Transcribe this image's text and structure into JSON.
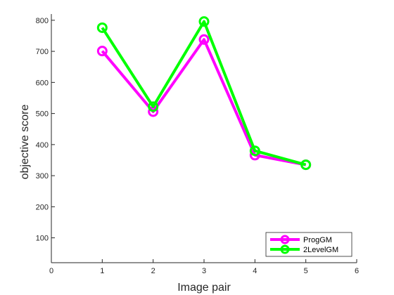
{
  "chart_data": {
    "type": "line",
    "title": "",
    "xlabel": "Image pair",
    "ylabel": "objective score",
    "xlim": [
      0,
      6
    ],
    "ylim": [
      20,
      820
    ],
    "x_ticks": [
      0,
      1,
      2,
      3,
      4,
      5,
      6
    ],
    "y_ticks": [
      100,
      200,
      300,
      400,
      500,
      600,
      700,
      800
    ],
    "x": [
      1,
      2,
      3,
      4,
      5
    ],
    "grid": false,
    "legend_position": "bottom-right",
    "series": [
      {
        "name": "ProgGM",
        "color": "#ff00ff",
        "marker": "circle",
        "values": [
          701,
          506,
          738,
          366,
          335
        ]
      },
      {
        "name": "2LevelGM",
        "color": "#00ff00",
        "marker": "circle",
        "values": [
          776,
          522,
          796,
          380,
          335
        ]
      }
    ]
  }
}
